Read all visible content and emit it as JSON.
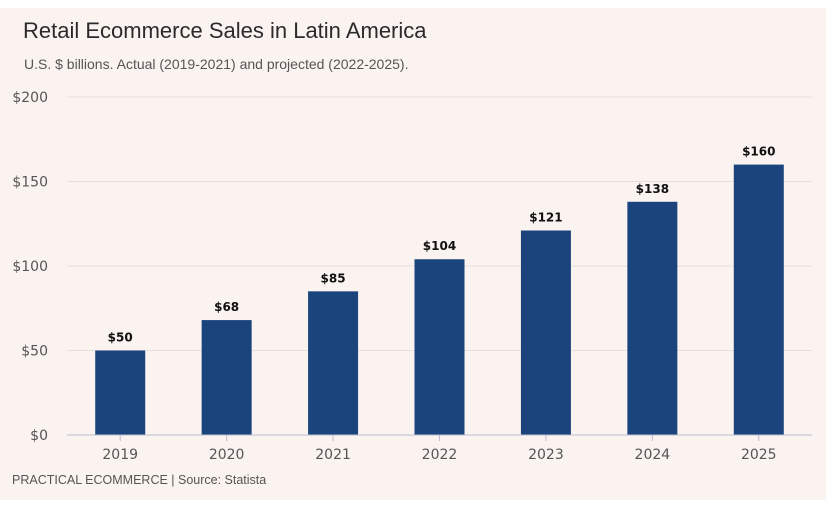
{
  "header": {
    "title": "Retail Ecommerce Sales in Latin America",
    "subtitle": "U.S. $ billions. Actual (2019-2021) and projected (2022-2025)."
  },
  "footer": {
    "credit": "PRACTICAL ECOMMERCE | Source: Statista"
  },
  "colors": {
    "bar": "#1b447d",
    "grid": "#e6e0dd",
    "axis": "#b9bdd0",
    "background": "#faf3f0"
  },
  "chart_data": {
    "type": "bar",
    "title": "Retail Ecommerce Sales in Latin America",
    "subtitle": "U.S. $ billions. Actual (2019-2021) and projected (2022-2025).",
    "categories": [
      "2019",
      "2020",
      "2021",
      "2022",
      "2023",
      "2024",
      "2025"
    ],
    "values": [
      50,
      68,
      85,
      104,
      121,
      138,
      160
    ],
    "data_labels": [
      "$50",
      "$68",
      "$85",
      "$104",
      "$121",
      "$138",
      "$160"
    ],
    "y_ticks": [
      0,
      50,
      100,
      150,
      200
    ],
    "y_tick_labels": [
      "$0",
      "$50",
      "$100",
      "$150",
      "$200"
    ],
    "xlabel": "",
    "ylabel": "",
    "ylim": [
      0,
      200
    ],
    "grid": true,
    "legend": "none"
  }
}
